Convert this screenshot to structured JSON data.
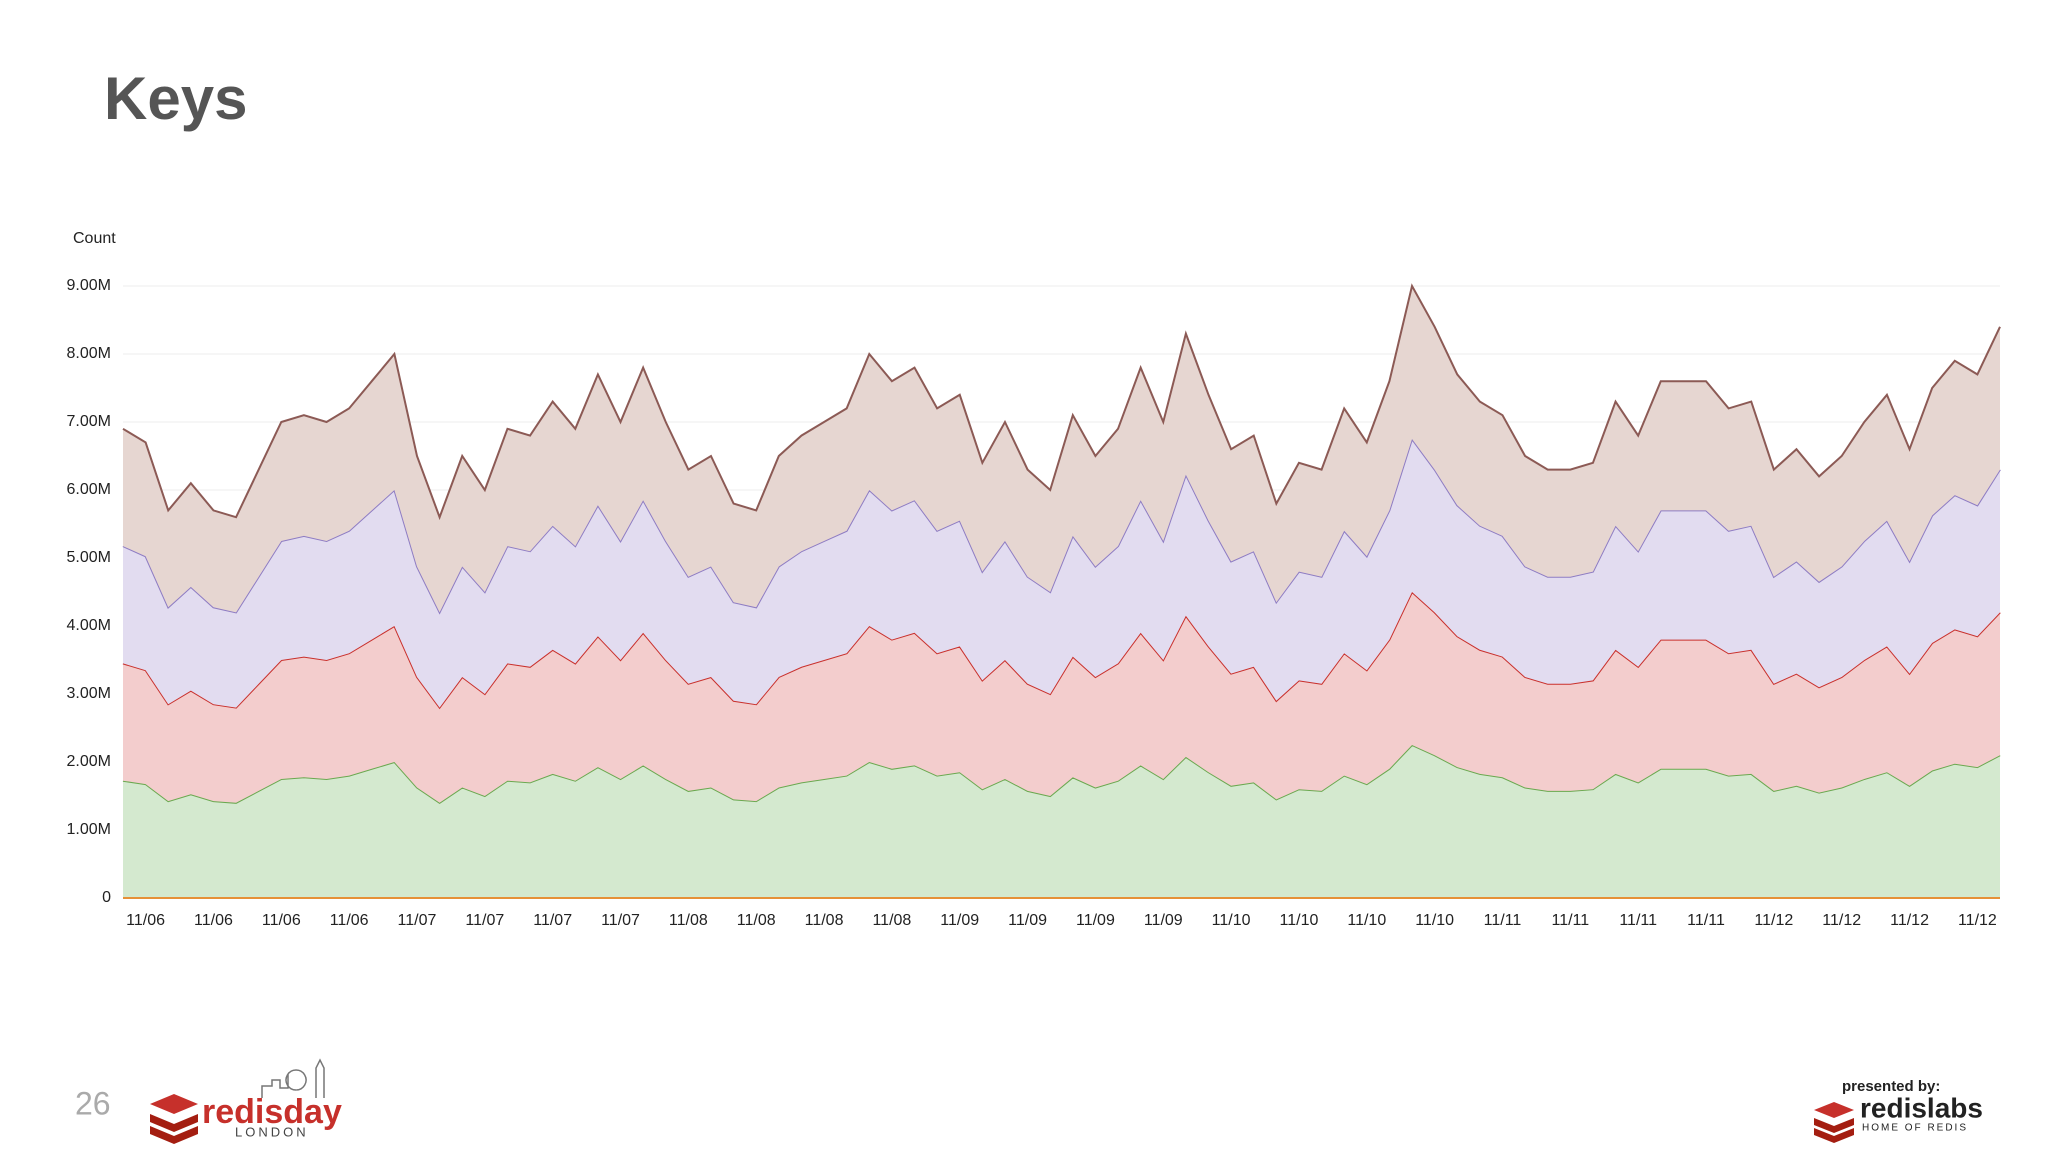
{
  "chart_data": {
    "type": "stacked_area",
    "title": "Keys",
    "y_label": "Count",
    "categories": [
      null,
      "11/06",
      null,
      null,
      "11/06",
      null,
      null,
      "11/06",
      null,
      null,
      "11/06",
      null,
      null,
      "11/07",
      null,
      null,
      "11/07",
      null,
      null,
      "11/07",
      null,
      null,
      "11/07",
      null,
      null,
      "11/08",
      null,
      null,
      "11/08",
      null,
      null,
      "11/08",
      null,
      null,
      "11/08",
      null,
      null,
      "11/09",
      null,
      null,
      "11/09",
      null,
      null,
      "11/09",
      null,
      null,
      "11/09",
      null,
      null,
      "11/10",
      null,
      null,
      "11/10",
      null,
      null,
      "11/10",
      null,
      null,
      "11/10",
      null,
      null,
      "11/11",
      null,
      null,
      "11/11",
      null,
      null,
      "11/11",
      null,
      null,
      "11/11",
      null,
      null,
      "11/12",
      null,
      null,
      "11/12",
      null,
      null,
      "11/12",
      null,
      null,
      "11/12",
      null
    ],
    "series": [
      {
        "color": "#6aa84f",
        "fill": "#d4e9cf",
        "values": [
          1725000,
          1675000,
          1425000,
          1525000,
          1425000,
          1400000,
          1575000,
          1750000,
          1775000,
          1750000,
          1800000,
          1900000,
          2000000,
          1625000,
          1400000,
          1625000,
          1500000,
          1725000,
          1700000,
          1825000,
          1725000,
          1925000,
          1750000,
          1950000,
          1750000,
          1575000,
          1625000,
          1450000,
          1425000,
          1625000,
          1700000,
          1750000,
          1800000,
          2000000,
          1900000,
          1950000,
          1800000,
          1850000,
          1600000,
          1750000,
          1575000,
          1500000,
          1775000,
          1625000,
          1725000,
          1950000,
          1750000,
          2075000,
          1850000,
          1650000,
          1700000,
          1450000,
          1600000,
          1575000,
          1800000,
          1675000,
          1900000,
          2250000,
          2100000,
          1925000,
          1825000,
          1775000,
          1625000,
          1575000,
          1575000,
          1600000,
          1825000,
          1700000,
          1900000,
          1900000,
          1900000,
          1800000,
          1825000,
          1575000,
          1650000,
          1550000,
          1625000,
          1750000,
          1850000,
          1650000,
          1875000,
          1975000,
          1925000,
          2100000
        ]
      },
      {
        "color": "#c9302c",
        "fill": "#f3cdcd",
        "values": [
          1725000,
          1675000,
          1425000,
          1525000,
          1425000,
          1400000,
          1575000,
          1750000,
          1775000,
          1750000,
          1800000,
          1900000,
          2000000,
          1625000,
          1400000,
          1625000,
          1500000,
          1725000,
          1700000,
          1825000,
          1725000,
          1925000,
          1750000,
          1950000,
          1750000,
          1575000,
          1625000,
          1450000,
          1425000,
          1625000,
          1700000,
          1750000,
          1800000,
          2000000,
          1900000,
          1950000,
          1800000,
          1850000,
          1600000,
          1750000,
          1575000,
          1500000,
          1775000,
          1625000,
          1725000,
          1950000,
          1750000,
          2075000,
          1850000,
          1650000,
          1700000,
          1450000,
          1600000,
          1575000,
          1800000,
          1675000,
          1900000,
          2250000,
          2100000,
          1925000,
          1825000,
          1775000,
          1625000,
          1575000,
          1575000,
          1600000,
          1825000,
          1700000,
          1900000,
          1900000,
          1900000,
          1800000,
          1825000,
          1575000,
          1650000,
          1550000,
          1625000,
          1750000,
          1850000,
          1650000,
          1875000,
          1975000,
          1925000,
          2100000
        ]
      },
      {
        "color": "#8e7cc3",
        "fill": "#e2dcf0",
        "values": [
          1725000,
          1675000,
          1425000,
          1525000,
          1425000,
          1400000,
          1575000,
          1750000,
          1775000,
          1750000,
          1800000,
          1900000,
          2000000,
          1625000,
          1400000,
          1625000,
          1500000,
          1725000,
          1700000,
          1825000,
          1725000,
          1925000,
          1750000,
          1950000,
          1750000,
          1575000,
          1625000,
          1450000,
          1425000,
          1625000,
          1700000,
          1750000,
          1800000,
          2000000,
          1900000,
          1950000,
          1800000,
          1850000,
          1600000,
          1750000,
          1575000,
          1500000,
          1775000,
          1625000,
          1725000,
          1950000,
          1750000,
          2075000,
          1850000,
          1650000,
          1700000,
          1450000,
          1600000,
          1575000,
          1800000,
          1675000,
          1900000,
          2250000,
          2100000,
          1925000,
          1825000,
          1775000,
          1625000,
          1575000,
          1575000,
          1600000,
          1825000,
          1700000,
          1900000,
          1900000,
          1900000,
          1800000,
          1825000,
          1575000,
          1650000,
          1550000,
          1625000,
          1750000,
          1850000,
          1650000,
          1875000,
          1975000,
          1925000,
          2100000
        ]
      },
      {
        "color": "#8c5a55",
        "fill": "#e6d6d1",
        "values": [
          1725000,
          1675000,
          1425000,
          1525000,
          1425000,
          1400000,
          1575000,
          1750000,
          1775000,
          1750000,
          1800000,
          1900000,
          2000000,
          1625000,
          1400000,
          1625000,
          1500000,
          1725000,
          1700000,
          1825000,
          1725000,
          1925000,
          1750000,
          1950000,
          1750000,
          1575000,
          1625000,
          1450000,
          1425000,
          1625000,
          1700000,
          1750000,
          1800000,
          2000000,
          1900000,
          1950000,
          1800000,
          1850000,
          1600000,
          1750000,
          1575000,
          1500000,
          1775000,
          1625000,
          1725000,
          1950000,
          1750000,
          2075000,
          1850000,
          1650000,
          1700000,
          1450000,
          1600000,
          1575000,
          1800000,
          1675000,
          1900000,
          2250000,
          2100000,
          1925000,
          1825000,
          1775000,
          1625000,
          1575000,
          1575000,
          1600000,
          1825000,
          1700000,
          1900000,
          1900000,
          1900000,
          1800000,
          1825000,
          1575000,
          1650000,
          1550000,
          1625000,
          1750000,
          1850000,
          1650000,
          1875000,
          1975000,
          1925000,
          2100000
        ]
      }
    ],
    "ylim": [
      0,
      9000000
    ],
    "yticks": [
      0,
      {
        "value": 1000000,
        "label": "1.00M"
      },
      {
        "value": 2000000,
        "label": "2.00M"
      },
      {
        "value": 3000000,
        "label": "3.00M"
      },
      {
        "value": 4000000,
        "label": "4.00M"
      },
      {
        "value": 5000000,
        "label": "5.00M"
      },
      {
        "value": 6000000,
        "label": "6.00M"
      },
      {
        "value": 7000000,
        "label": "7.00M"
      },
      {
        "value": 8000000,
        "label": "8.00M"
      },
      {
        "value": 9000000,
        "label": "9.00M"
      }
    ],
    "grid": true
  },
  "footer": {
    "page_number": "26",
    "event_name": "redisday",
    "event_city": "LONDON",
    "presenter_note": "presented by:",
    "presenter_name": "redislabs",
    "presenter_tagline": "HOME OF REDIS"
  }
}
